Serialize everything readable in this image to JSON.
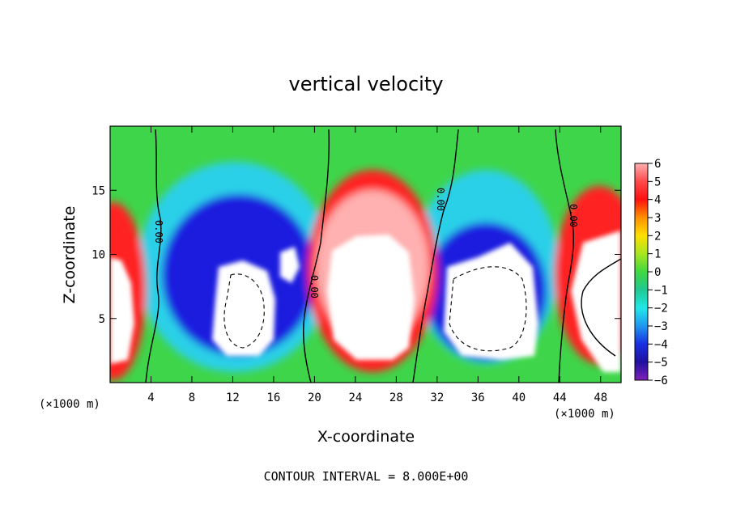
{
  "chart_data": {
    "type": "heatmap",
    "title": "vertical velocity",
    "xlabel": "X-coordinate",
    "ylabel": "Z-coordinate",
    "x_unit": "(×1000 m)",
    "x_unit_right": "(×1000 m)",
    "xlim": [
      0,
      50
    ],
    "ylim": [
      0,
      20
    ],
    "x_ticks": [
      4,
      8,
      12,
      16,
      20,
      24,
      28,
      32,
      36,
      40,
      44,
      48
    ],
    "y_ticks": [
      5,
      10,
      15
    ],
    "colorbar": {
      "ticks": [
        6,
        5,
        4,
        3,
        2,
        1,
        0,
        -1,
        -2,
        -3,
        -4,
        -5,
        -6
      ],
      "range": [
        -6,
        6
      ]
    },
    "contour_label": "0.00",
    "contour_interval_text": "CONTOUR INTERVAL = 8.000E+00",
    "colors": {
      "strong_down": "#7a1fb0",
      "down": "#1a1adf",
      "weak_down": "#2fb4f0",
      "neutral": "#3fd54a",
      "weak_up": "#d8e81a",
      "up": "#ff9a00",
      "strong_up": "#ff1a1a",
      "peak": "#ffb0b0",
      "off_scale": "#ffffff"
    },
    "features": [
      {
        "type": "updraft",
        "x": 0,
        "z": 7.5
      },
      {
        "type": "downdraft",
        "x": 12,
        "z": 7
      },
      {
        "type": "updraft",
        "x": 25,
        "z": 8
      },
      {
        "type": "downdraft",
        "x": 37,
        "z": 7
      },
      {
        "type": "updraft",
        "x": 47,
        "z": 7
      }
    ]
  }
}
